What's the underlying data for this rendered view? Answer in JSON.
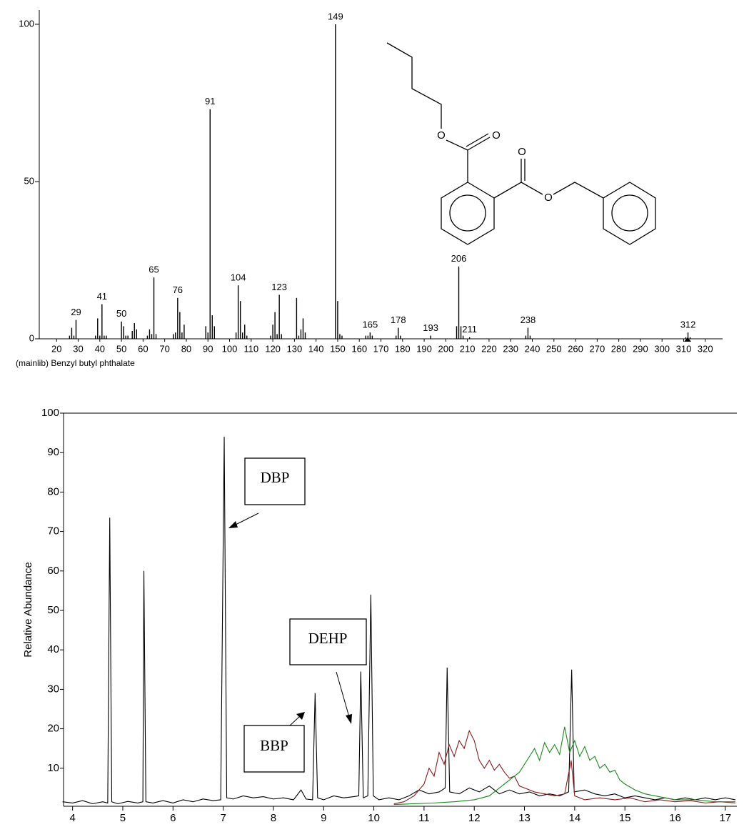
{
  "chart_data": [
    {
      "type": "bar",
      "color": "#000000",
      "x": [
        26,
        27,
        28,
        29,
        38,
        39,
        40,
        41,
        42,
        43,
        50,
        51,
        52,
        53,
        55,
        56,
        57,
        62,
        63,
        64,
        65,
        66,
        74,
        75,
        76,
        77,
        78,
        79,
        89,
        90,
        91,
        92,
        93,
        103,
        104,
        105,
        106,
        107,
        108,
        119,
        120,
        121,
        122,
        123,
        124,
        131,
        132,
        133,
        134,
        135,
        149,
        150,
        151,
        152,
        163,
        164,
        165,
        166,
        177,
        178,
        179,
        193,
        205,
        206,
        207,
        208,
        211,
        237,
        238,
        239,
        311,
        312,
        313
      ],
      "values": [
        1,
        3.5,
        1,
        6,
        1,
        6.5,
        1,
        11,
        1,
        1,
        5.5,
        4,
        1,
        1,
        2.5,
        5,
        3,
        1,
        3,
        1.5,
        19.5,
        1.5,
        1.5,
        2,
        13,
        8.5,
        2,
        4.5,
        4,
        2,
        73,
        7.5,
        4,
        2,
        17,
        12,
        2,
        4.5,
        1,
        1,
        4.5,
        8.5,
        1.5,
        14,
        1.5,
        13,
        1,
        3,
        6.5,
        2,
        100,
        12,
        1.5,
        1,
        1,
        1,
        2,
        1,
        1,
        3.5,
        1,
        1,
        4,
        23,
        4,
        1,
        0.5,
        1,
        3.5,
        1,
        0.5,
        2,
        0.5
      ],
      "labeled_peaks": [
        29,
        41,
        50,
        65,
        76,
        91,
        104,
        123,
        149,
        165,
        178,
        193,
        206,
        211,
        238,
        312
      ],
      "xlim": [
        12,
        328
      ],
      "ylim": [
        0,
        100
      ],
      "xticks": [
        20,
        30,
        40,
        50,
        60,
        70,
        80,
        90,
        100,
        110,
        120,
        130,
        140,
        150,
        160,
        170,
        180,
        190,
        200,
        210,
        220,
        230,
        240,
        250,
        260,
        270,
        280,
        290,
        300,
        310,
        320
      ],
      "yticks": [
        0,
        50,
        100
      ],
      "caption": "(mainlib) Benzyl butyl phthalate"
    },
    {
      "type": "line",
      "ylabel": "Relative Abundance",
      "xlim": [
        3.82,
        17.23
      ],
      "ylim": [
        0,
        100
      ],
      "xticks": [
        4,
        5,
        6,
        7,
        8,
        9,
        10,
        11,
        12,
        13,
        14,
        15,
        16,
        17
      ],
      "yticks": [
        10,
        20,
        30,
        40,
        50,
        60,
        70,
        80,
        90,
        100
      ],
      "series": [
        {
          "color": "#000000",
          "x": [
            3.8,
            4.0,
            4.2,
            4.4,
            4.6,
            4.7,
            4.74,
            4.78,
            4.9,
            5.1,
            5.3,
            5.4,
            5.42,
            5.46,
            5.6,
            5.8,
            6.0,
            6.2,
            6.4,
            6.6,
            6.8,
            6.95,
            7.02,
            7.07,
            7.2,
            7.4,
            7.6,
            7.8,
            8.0,
            8.2,
            8.4,
            8.55,
            8.65,
            8.78,
            8.83,
            8.88,
            9.0,
            9.2,
            9.4,
            9.6,
            9.7,
            9.74,
            9.79,
            9.88,
            9.94,
            9.99,
            10.1,
            10.3,
            10.5,
            10.7,
            10.9,
            11.1,
            11.3,
            11.42,
            11.46,
            11.51,
            11.7,
            11.9,
            12.1,
            12.3,
            12.5,
            12.7,
            12.9,
            13.1,
            13.3,
            13.5,
            13.7,
            13.88,
            13.94,
            13.99,
            14.2,
            14.4,
            14.6,
            14.8,
            15.0,
            15.2,
            15.4,
            15.6,
            15.8,
            16.0,
            16.2,
            16.4,
            16.6,
            16.8,
            17.0,
            17.2
          ],
          "values": [
            1.5,
            1.2,
            1.8,
            1.0,
            1.5,
            1.2,
            73.5,
            1.5,
            1.0,
            1.6,
            1.2,
            1.5,
            60,
            1.5,
            1.2,
            1.8,
            1.2,
            2.0,
            1.5,
            2.2,
            1.8,
            2.0,
            94,
            2.5,
            2.2,
            3.0,
            2.5,
            2.8,
            2.2,
            2.5,
            2.0,
            4.5,
            2.2,
            2.0,
            29,
            2.5,
            2.0,
            3.0,
            2.5,
            2.8,
            3.0,
            34.5,
            2.5,
            3.0,
            54,
            3.0,
            2.0,
            2.5,
            2.0,
            3.0,
            4.5,
            3.5,
            4.0,
            5.0,
            35.5,
            4.0,
            3.5,
            5.0,
            4.0,
            5.5,
            3.5,
            4.5,
            3.5,
            4.0,
            3.0,
            3.5,
            3.0,
            4.0,
            35,
            4.0,
            4.5,
            3.5,
            3.0,
            3.5,
            2.5,
            3.0,
            2.5,
            2.0,
            2.5,
            2.0,
            2.5,
            2.0,
            2.5,
            2.0,
            2.5,
            2.0
          ]
        },
        {
          "color": "#8b1a1a",
          "x": [
            10.4,
            10.6,
            10.8,
            11.0,
            11.1,
            11.2,
            11.3,
            11.4,
            11.5,
            11.6,
            11.7,
            11.8,
            11.9,
            12.0,
            12.1,
            12.2,
            12.3,
            12.4,
            12.5,
            12.6,
            12.7,
            12.8,
            12.9,
            13.0,
            13.2,
            13.4,
            13.6,
            13.8,
            13.93,
            14.0,
            14.2,
            14.5,
            14.8,
            15.1,
            15.4,
            15.7,
            16.0,
            16.3,
            16.6,
            16.9,
            17.2
          ],
          "values": [
            1.0,
            1.5,
            3.0,
            6.0,
            10.0,
            8.0,
            14.0,
            11.0,
            16.0,
            13.0,
            17.0,
            15.0,
            19.5,
            17.0,
            12.0,
            10.0,
            12.0,
            9.5,
            11.0,
            9.0,
            7.5,
            8.0,
            5.5,
            5.0,
            4.0,
            3.5,
            3.0,
            3.5,
            12,
            3.0,
            2.0,
            2.5,
            2.0,
            2.5,
            1.5,
            2.0,
            1.5,
            1.8,
            1.2,
            1.5,
            1.2
          ]
        },
        {
          "color": "#1a8a1a",
          "x": [
            10.4,
            10.8,
            11.2,
            11.6,
            12.0,
            12.3,
            12.5,
            12.7,
            12.9,
            13.0,
            13.1,
            13.2,
            13.3,
            13.4,
            13.5,
            13.6,
            13.7,
            13.8,
            13.9,
            14.0,
            14.1,
            14.2,
            14.3,
            14.4,
            14.5,
            14.6,
            14.7,
            14.8,
            14.9,
            15.0,
            15.2,
            15.4,
            15.6,
            15.8,
            16.0,
            16.4,
            16.8,
            17.2
          ],
          "values": [
            0.8,
            1.0,
            1.2,
            1.5,
            2.0,
            3.0,
            5.0,
            7.0,
            9.0,
            11.0,
            13.0,
            15.0,
            12.0,
            16.5,
            14.0,
            16.0,
            13.5,
            20.5,
            14.0,
            17.0,
            13.0,
            15.5,
            12.0,
            13.0,
            10.0,
            11.0,
            9.0,
            9.5,
            7.0,
            6.0,
            4.5,
            3.5,
            3.0,
            2.5,
            2.0,
            2.0,
            1.5,
            1.5
          ]
        }
      ],
      "annotations": [
        "DBP",
        "DEHP",
        "BBP"
      ]
    }
  ],
  "structure": {
    "atoms": [
      "O",
      "O",
      "O",
      "O"
    ]
  }
}
